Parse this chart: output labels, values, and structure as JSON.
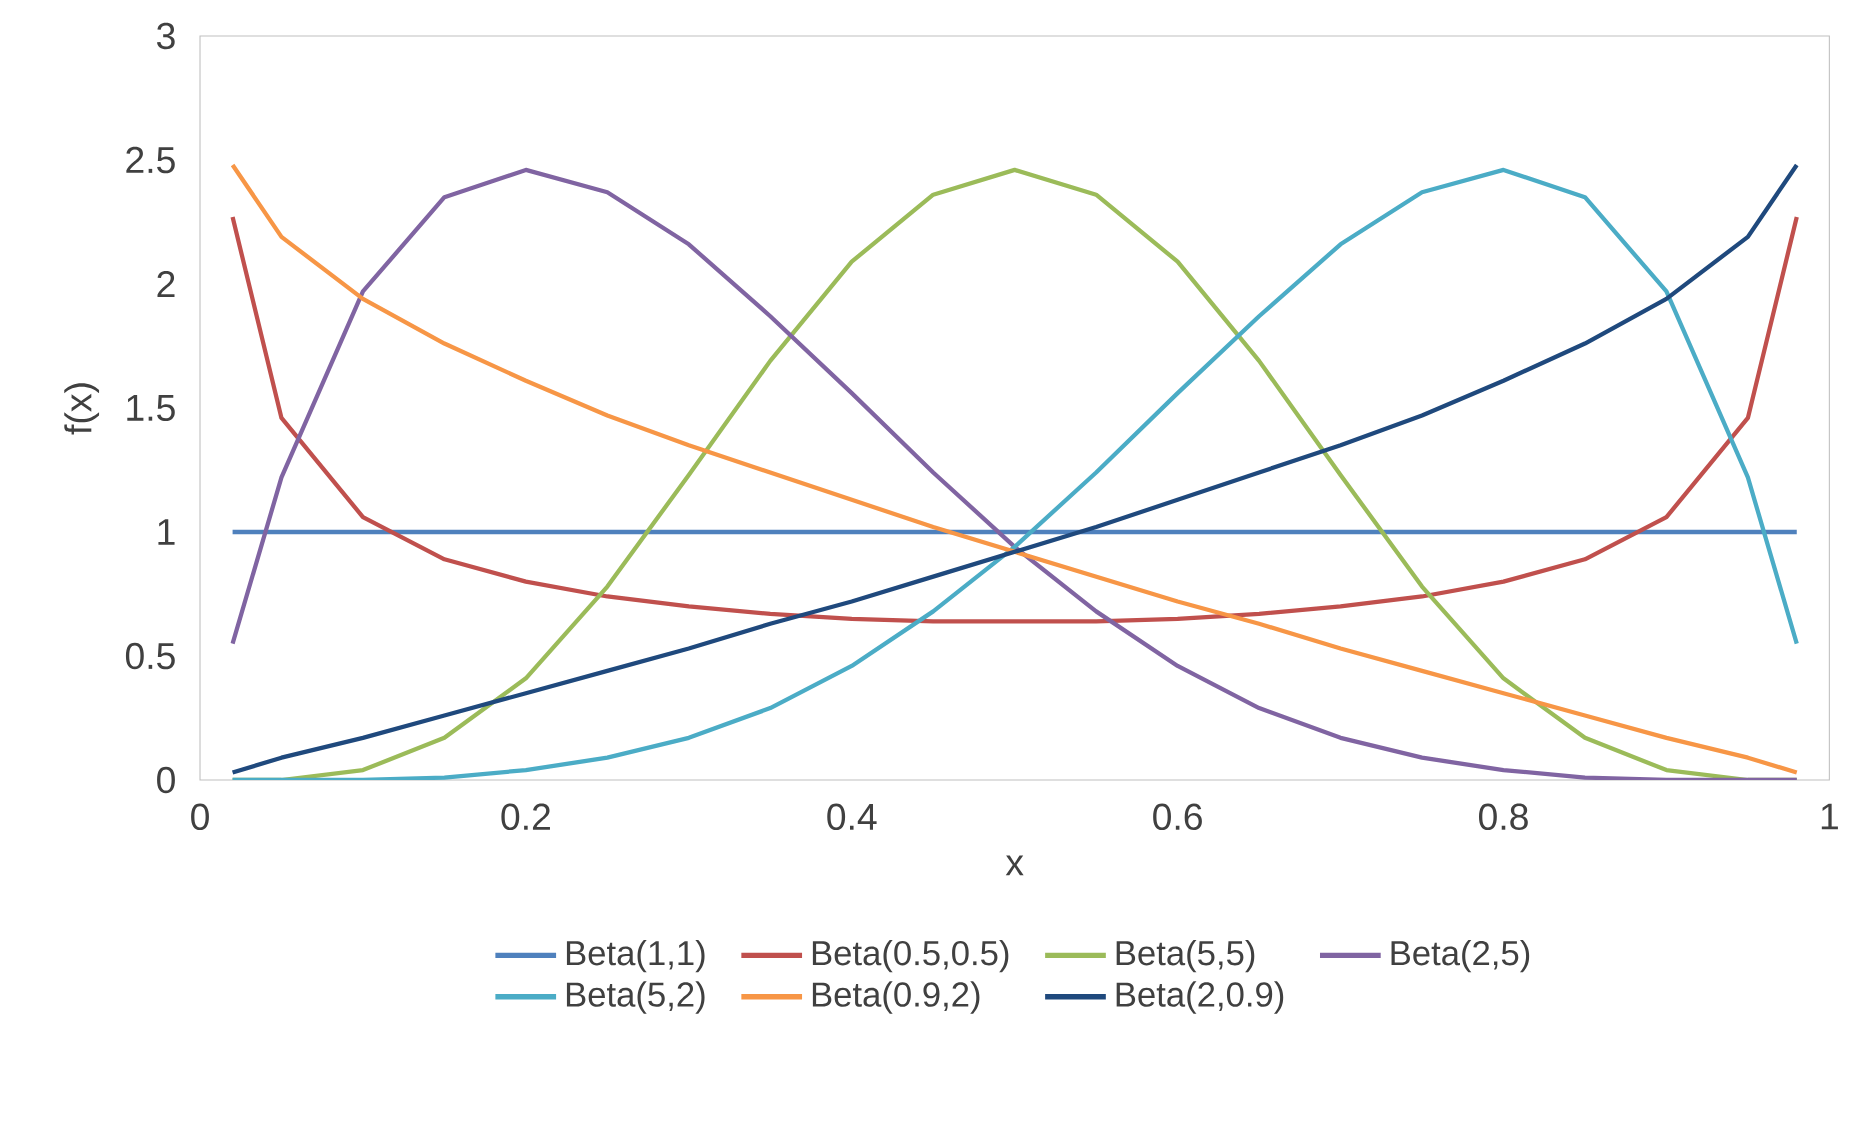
{
  "chart_data": {
    "type": "line",
    "xlabel": "x",
    "ylabel": "f(x)",
    "x": [
      0.02,
      0.05,
      0.1,
      0.15,
      0.2,
      0.25,
      0.3,
      0.35,
      0.4,
      0.45,
      0.5,
      0.55,
      0.6,
      0.65,
      0.7,
      0.75,
      0.8,
      0.85,
      0.9,
      0.95,
      0.98
    ],
    "series": [
      {
        "name": "Beta(1,1)",
        "color": "#4f81bd",
        "values": [
          1,
          1,
          1,
          1,
          1,
          1,
          1,
          1,
          1,
          1,
          1,
          1,
          1,
          1,
          1,
          1,
          1,
          1,
          1,
          1,
          1
        ]
      },
      {
        "name": "Beta(0.5,0.5)",
        "color": "#c0504d",
        "values": [
          2.27,
          1.46,
          1.06,
          0.89,
          0.8,
          0.74,
          0.7,
          0.67,
          0.65,
          0.64,
          0.64,
          0.64,
          0.65,
          0.67,
          0.7,
          0.74,
          0.8,
          0.89,
          1.06,
          1.46,
          2.27
        ]
      },
      {
        "name": "Beta(5,5)",
        "color": "#9bbb59",
        "values": [
          0,
          0,
          0.04,
          0.17,
          0.41,
          0.78,
          1.23,
          1.69,
          2.09,
          2.36,
          2.46,
          2.36,
          2.09,
          1.69,
          1.23,
          0.78,
          0.41,
          0.17,
          0.04,
          0,
          0
        ]
      },
      {
        "name": "Beta(2,5)",
        "color": "#8064a2",
        "values": [
          0.55,
          1.22,
          1.97,
          2.35,
          2.46,
          2.37,
          2.16,
          1.87,
          1.56,
          1.24,
          0.94,
          0.68,
          0.46,
          0.29,
          0.17,
          0.09,
          0.04,
          0.01,
          0,
          0,
          0
        ]
      },
      {
        "name": "Beta(5,2)",
        "color": "#4bacc6",
        "values": [
          0,
          0,
          0,
          0.01,
          0.04,
          0.09,
          0.17,
          0.29,
          0.46,
          0.68,
          0.94,
          1.24,
          1.56,
          1.87,
          2.16,
          2.37,
          2.46,
          2.35,
          1.97,
          1.22,
          0.55
        ]
      },
      {
        "name": "Beta(0.9,2)",
        "color": "#f79646",
        "values": [
          2.48,
          2.19,
          1.94,
          1.76,
          1.61,
          1.47,
          1.35,
          1.24,
          1.13,
          1.02,
          0.92,
          0.82,
          0.72,
          0.63,
          0.53,
          0.44,
          0.35,
          0.26,
          0.17,
          0.09,
          0.03
        ]
      },
      {
        "name": "Beta(2,0.9)",
        "color": "#1f497d",
        "values": [
          0.03,
          0.09,
          0.17,
          0.26,
          0.35,
          0.44,
          0.53,
          0.63,
          0.72,
          0.82,
          0.92,
          1.02,
          1.13,
          1.24,
          1.35,
          1.47,
          1.61,
          1.76,
          1.94,
          2.19,
          2.48
        ]
      }
    ],
    "xlim": [
      0,
      1
    ],
    "ylim": [
      0,
      3
    ],
    "xticks": [
      0,
      0.2,
      0.4,
      0.6,
      0.8,
      1
    ],
    "yticks": [
      0,
      0.5,
      1,
      1.5,
      2,
      2.5,
      3
    ],
    "legend": "bottom"
  }
}
